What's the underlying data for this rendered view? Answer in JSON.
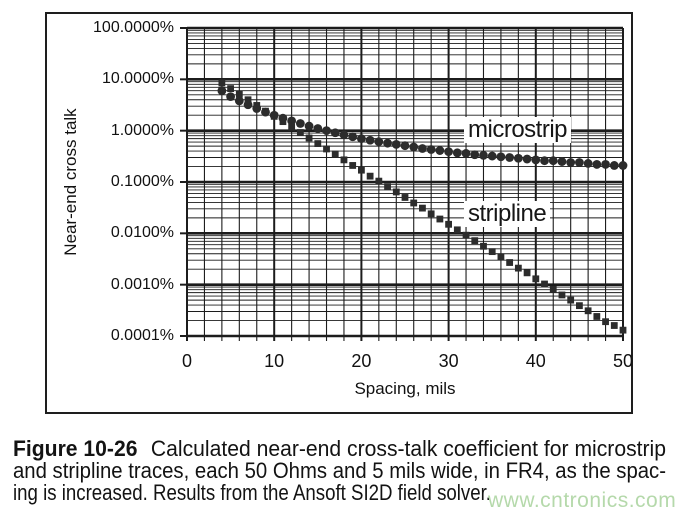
{
  "figure": {
    "y_axis": {
      "title": "Near-end cross talk",
      "tick_labels": [
        "100.0000%",
        "10.0000%",
        "1.0000%",
        "0.1000%",
        "0.0100%",
        "0.0010%",
        "0.0001%"
      ]
    },
    "x_axis": {
      "title": "Spacing, mils",
      "tick_labels": [
        "0",
        "10",
        "20",
        "30",
        "40",
        "50"
      ]
    },
    "series_labels": {
      "microstrip": "microstrip",
      "stripline": "stripline"
    }
  },
  "chart_data": {
    "type": "scatter",
    "title": "",
    "xlabel": "Spacing, mils",
    "ylabel": "Near-end cross talk",
    "x_range": [
      0,
      50
    ],
    "x_minor_step": 2,
    "y_scale": "log",
    "y_range_percent": [
      0.0001,
      100
    ],
    "grid": "major and minor, both axes",
    "legend": "inline labels on plot",
    "spacing_mils": [
      4,
      5,
      6,
      7,
      8,
      9,
      10,
      11,
      12,
      13,
      14,
      15,
      16,
      17,
      18,
      19,
      20,
      21,
      22,
      23,
      24,
      25,
      26,
      27,
      28,
      29,
      30,
      31,
      32,
      33,
      34,
      35,
      36,
      37,
      38,
      39,
      40,
      41,
      42,
      43,
      44,
      45,
      46,
      47,
      48,
      49,
      50
    ],
    "series": [
      {
        "name": "microstrip",
        "marker": "circle",
        "values_percent": [
          6.0,
          4.6,
          3.8,
          3.2,
          2.7,
          2.3,
          2.0,
          1.75,
          1.55,
          1.38,
          1.23,
          1.1,
          1.0,
          0.91,
          0.83,
          0.76,
          0.7,
          0.65,
          0.61,
          0.57,
          0.54,
          0.51,
          0.48,
          0.45,
          0.43,
          0.41,
          0.39,
          0.37,
          0.36,
          0.34,
          0.33,
          0.32,
          0.31,
          0.3,
          0.29,
          0.28,
          0.27,
          0.26,
          0.26,
          0.25,
          0.24,
          0.24,
          0.23,
          0.22,
          0.22,
          0.21,
          0.21
        ]
      },
      {
        "name": "stripline",
        "marker": "square",
        "values_percent": [
          8.5,
          6.6,
          5.1,
          4.0,
          3.1,
          2.4,
          1.9,
          1.5,
          1.17,
          0.92,
          0.72,
          0.56,
          0.44,
          0.35,
          0.27,
          0.21,
          0.17,
          0.13,
          0.104,
          0.081,
          0.064,
          0.05,
          0.039,
          0.031,
          0.024,
          0.019,
          0.015,
          0.0117,
          0.0092,
          0.0072,
          0.0056,
          0.0044,
          0.0035,
          0.0027,
          0.0021,
          0.0017,
          0.0013,
          0.00103,
          0.00081,
          0.00063,
          0.0005,
          0.00039,
          0.00031,
          0.00024,
          0.00019,
          0.00016,
          0.00013
        ]
      }
    ]
  },
  "caption": {
    "label": "Figure 10-26",
    "line1": "Calculated near-end cross-talk coefficient for microstrip",
    "line2": "and stripline traces, each 50 Ohms and 5 mils wide, in FR4, as the spac-",
    "line3": "ing is increased. Results from the Ansoft SI2D field solver."
  },
  "watermark": {
    "text": "www.cntronics.com",
    "color": "#b5d9ab"
  },
  "colors": {
    "marker": "#2c2c2c",
    "grid": "#1c1c1c",
    "text": "#131313"
  }
}
